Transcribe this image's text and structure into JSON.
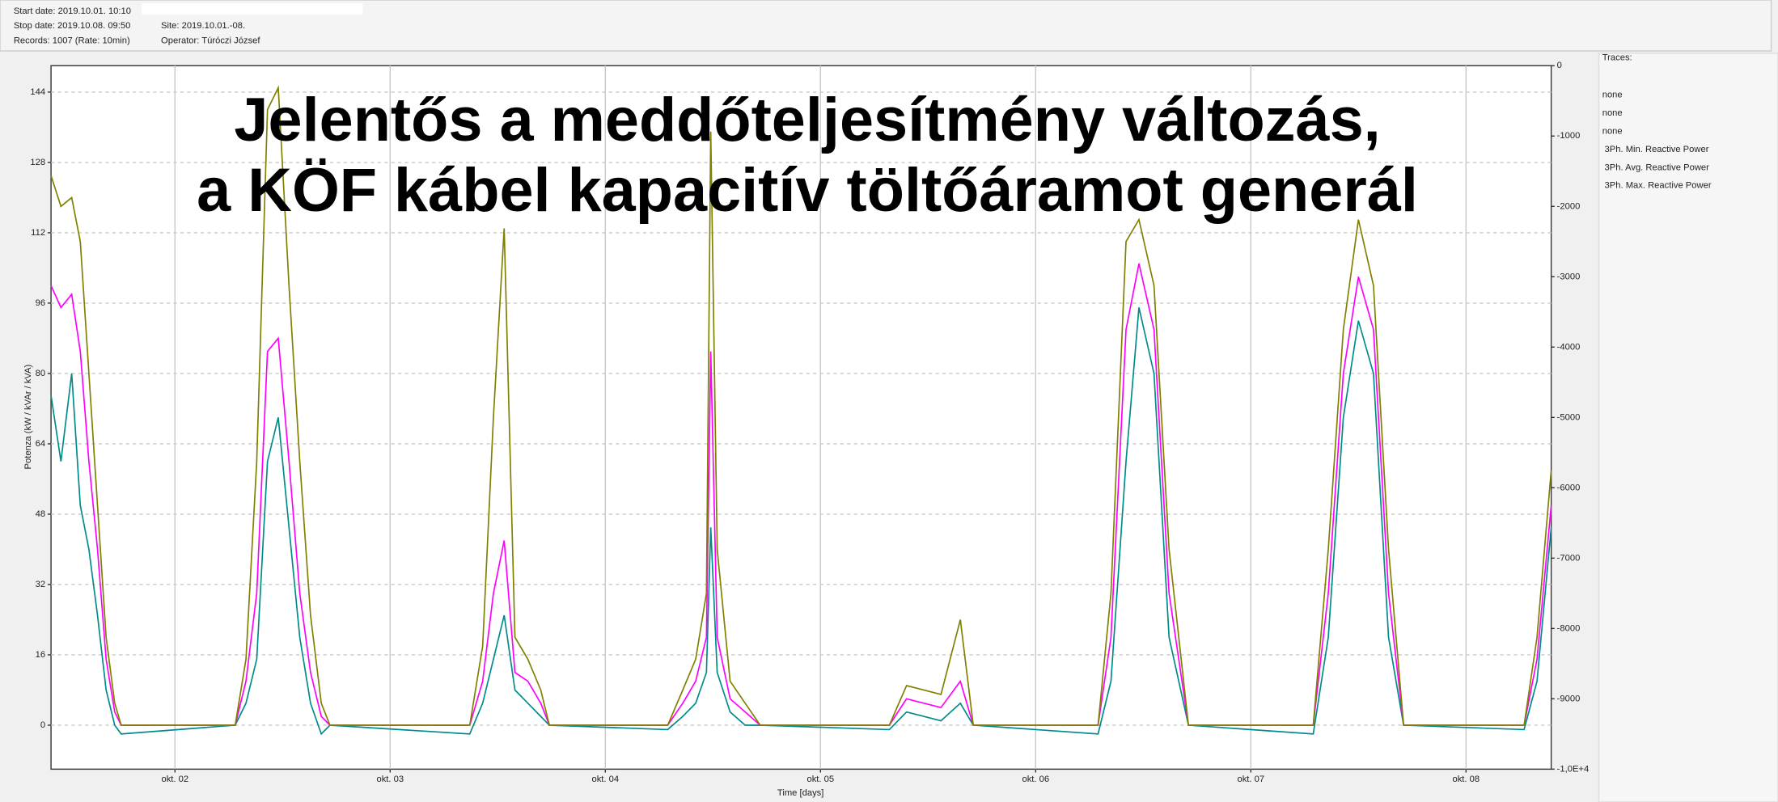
{
  "header": {
    "start": "Start date: 2019.10.01. 10:10",
    "stop": "Stop date: 2019.10.08. 09:50",
    "records": "Records: 1007  (Rate: 10min)",
    "site": "Site: 2019.10.01.-08.",
    "operator": "Operator: Túróczi József"
  },
  "chart_data": {
    "type": "line",
    "title_lines": [
      "Jelentős a meddőteljesítmény változás,",
      "a KÖF kábel kapacitív töltőáramot generál"
    ],
    "ylabel": "Potenza (kW / kVAr / kVA)",
    "xlabel": "Time [days]",
    "legend_title": "Traces:",
    "unused_traces": [
      {
        "name": "none",
        "color": "#ff0000"
      },
      {
        "name": "none",
        "color": "#008000"
      },
      {
        "name": "none",
        "color": "#0000ff"
      }
    ],
    "x": [
      1.424,
      1.47,
      1.52,
      1.56,
      1.6,
      1.64,
      1.68,
      1.72,
      1.75,
      2.28,
      2.33,
      2.38,
      2.43,
      2.48,
      2.53,
      2.58,
      2.63,
      2.68,
      2.72,
      3.37,
      3.43,
      3.48,
      3.53,
      3.58,
      3.64,
      3.7,
      3.74,
      4.29,
      4.36,
      4.42,
      4.47,
      4.49,
      4.52,
      4.58,
      4.65,
      4.72,
      5.32,
      5.4,
      5.48,
      5.56,
      5.65,
      5.71,
      6.29,
      6.35,
      6.42,
      6.48,
      6.55,
      6.62,
      6.71,
      7.29,
      7.36,
      7.43,
      7.5,
      7.57,
      7.64,
      7.71,
      8.27,
      8.33,
      8.396
    ],
    "series": [
      {
        "name": "3Ph. Min. Reactive Power",
        "color": "#008b8b",
        "values": [
          75,
          60,
          80,
          50,
          40,
          25,
          8,
          0,
          -2,
          0,
          5,
          15,
          60,
          70,
          45,
          20,
          5,
          -2,
          0,
          -2,
          5,
          15,
          25,
          8,
          5,
          2,
          0,
          -1,
          2,
          5,
          12,
          45,
          12,
          3,
          0,
          0,
          -1,
          3,
          2,
          1,
          5,
          0,
          -2,
          10,
          60,
          95,
          80,
          20,
          0,
          -2,
          20,
          70,
          92,
          80,
          20,
          0,
          -1,
          10,
          45
        ]
      },
      {
        "name": "3Ph. Avg. Reactive Power",
        "color": "#ff00ff",
        "values": [
          100,
          95,
          98,
          85,
          60,
          40,
          15,
          3,
          0,
          0,
          10,
          30,
          85,
          88,
          60,
          30,
          12,
          2,
          0,
          0,
          10,
          30,
          42,
          12,
          10,
          5,
          0,
          0,
          5,
          10,
          20,
          85,
          20,
          6,
          3,
          0,
          0,
          6,
          5,
          4,
          10,
          0,
          0,
          20,
          90,
          105,
          90,
          30,
          0,
          0,
          30,
          80,
          102,
          90,
          30,
          0,
          0,
          15,
          50
        ]
      },
      {
        "name": "3Ph. Max. Reactive Power",
        "color": "#808000",
        "values": [
          125,
          118,
          120,
          110,
          80,
          50,
          20,
          5,
          0,
          0,
          15,
          60,
          140,
          145,
          100,
          60,
          25,
          5,
          0,
          0,
          18,
          70,
          113,
          20,
          15,
          8,
          0,
          0,
          8,
          15,
          30,
          135,
          40,
          10,
          5,
          0,
          0,
          9,
          8,
          7,
          24,
          0,
          0,
          30,
          110,
          115,
          100,
          40,
          0,
          0,
          40,
          90,
          115,
          100,
          40,
          0,
          0,
          20,
          58
        ]
      }
    ],
    "xlim": [
      1.424,
      8.396
    ],
    "xticks": [
      {
        "value": 2,
        "label": "okt. 02"
      },
      {
        "value": 3,
        "label": "okt. 03"
      },
      {
        "value": 4,
        "label": "okt. 04"
      },
      {
        "value": 5,
        "label": "okt. 05"
      },
      {
        "value": 6,
        "label": "okt. 06"
      },
      {
        "value": 7,
        "label": "okt. 07"
      },
      {
        "value": 8,
        "label": "okt. 08"
      }
    ],
    "ylim": [
      -10,
      150
    ],
    "yticks": [
      0,
      16,
      32,
      48,
      64,
      80,
      96,
      112,
      128,
      144
    ],
    "y2lim": [
      -10000,
      0
    ],
    "y2ticks": [
      0,
      -1000,
      -2000,
      -3000,
      -4000,
      -5000,
      -6000,
      -7000,
      -8000,
      -9000,
      {
        "value": -10000,
        "label": "-1,0E+4"
      }
    ],
    "grid": true
  }
}
